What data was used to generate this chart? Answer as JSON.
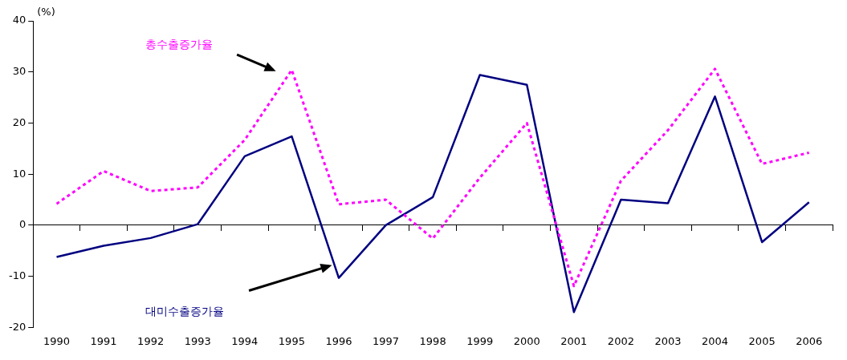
{
  "chart_data": {
    "type": "line",
    "ylabel": "(%)",
    "categories": [
      "1990",
      "1991",
      "1992",
      "1993",
      "1994",
      "1995",
      "1996",
      "1997",
      "1998",
      "1999",
      "2000",
      "2001",
      "2002",
      "2003",
      "2004",
      "2005",
      "2006"
    ],
    "series": [
      {
        "name": "총수출증가율",
        "color": "#ff00ff",
        "line_style": "dotted",
        "values": [
          4.2,
          10.6,
          6.7,
          7.4,
          16.7,
          30.4,
          4.1,
          5.0,
          -2.6,
          9.3,
          20.0,
          -11.9,
          8.7,
          18.6,
          30.6,
          12.0,
          14.2
        ]
      },
      {
        "name": "대미수출증가율",
        "color": "#000080",
        "line_style": "solid",
        "values": [
          -6.2,
          -4.0,
          -2.5,
          0.2,
          13.5,
          17.4,
          -10.3,
          0,
          5.5,
          29.4,
          27.5,
          -17.0,
          5.0,
          4.3,
          25.2,
          -3.3,
          4.5
        ]
      }
    ],
    "ylim": [
      -20,
      40
    ],
    "yticks": [
      -20,
      -10,
      0,
      10,
      20,
      30,
      40
    ],
    "marker": "none"
  }
}
